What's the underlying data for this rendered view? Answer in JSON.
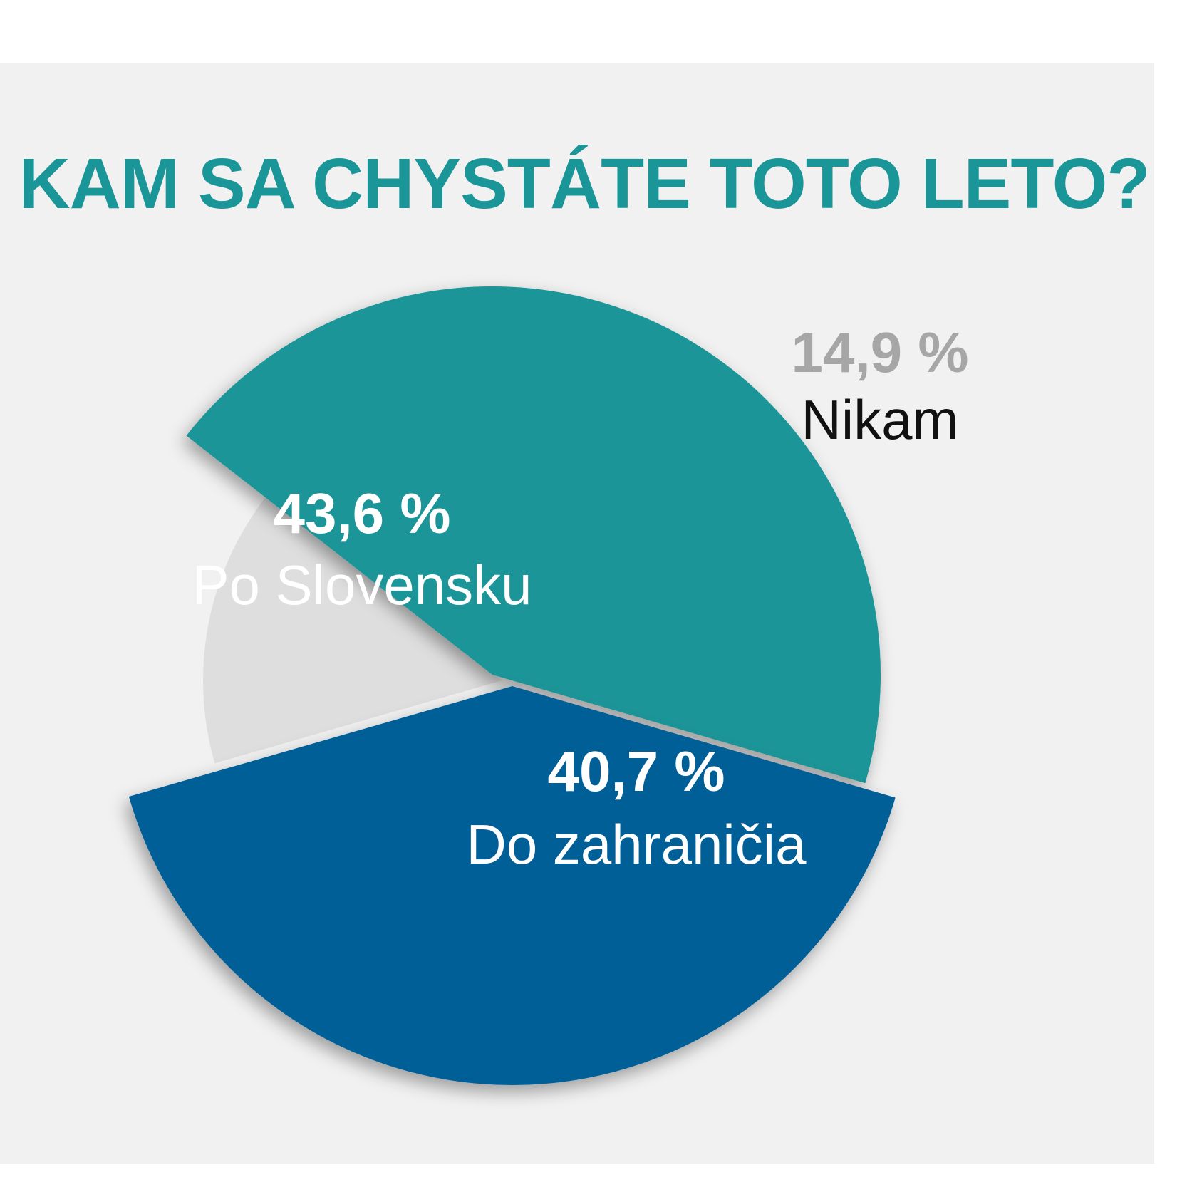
{
  "chart_data": {
    "type": "pie",
    "title": "KAM SA CHYSTÁTE TOTO LETO?",
    "slices": [
      {
        "label": "Po Slovensku",
        "value": 43.6,
        "value_label": "43,6 %",
        "color": "#1a9598"
      },
      {
        "label": "Do zahraničia",
        "value": 40.7,
        "value_label": "40,7 %",
        "color": "#025e97"
      },
      {
        "label": "Nikam",
        "value": 14.9,
        "value_label": "14,9 %",
        "color": "#dedede"
      }
    ]
  },
  "colors": {
    "background": "#f1f1f1",
    "title": "#1a9598",
    "inner_label": "#ffffff",
    "outer_value": "#a6a6a6",
    "outer_label": "#111111"
  }
}
